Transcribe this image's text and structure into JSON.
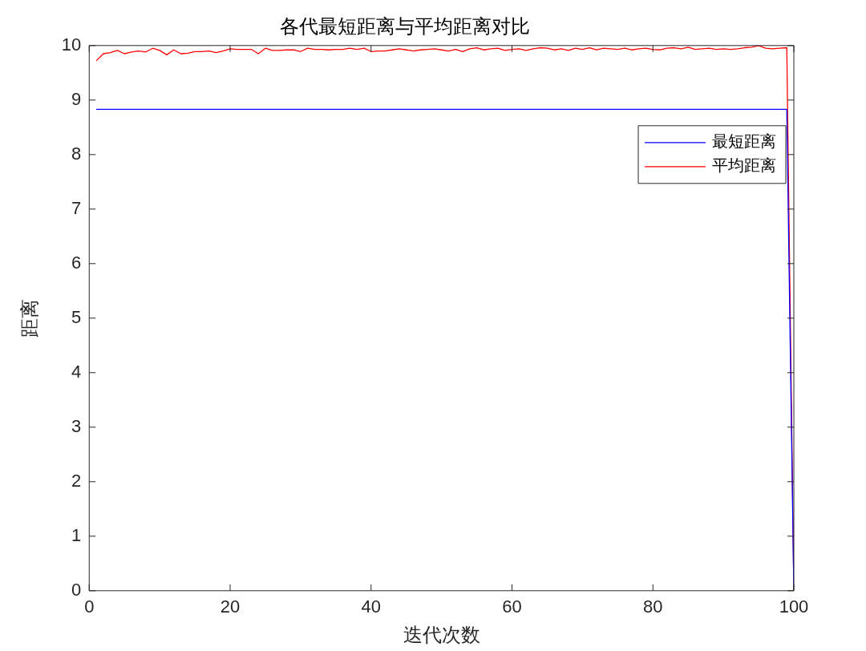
{
  "chart_data": {
    "type": "line",
    "title": "各代最短距离与平均距离对比",
    "xlabel": "迭代次数",
    "ylabel": "距离",
    "x": [
      1,
      2,
      3,
      4,
      5,
      6,
      7,
      8,
      9,
      10,
      11,
      12,
      13,
      14,
      15,
      16,
      17,
      18,
      19,
      20,
      21,
      22,
      23,
      24,
      25,
      26,
      27,
      28,
      29,
      30,
      31,
      32,
      33,
      34,
      35,
      36,
      37,
      38,
      39,
      40,
      41,
      42,
      43,
      44,
      45,
      46,
      47,
      48,
      49,
      50,
      51,
      52,
      53,
      54,
      55,
      56,
      57,
      58,
      59,
      60,
      61,
      62,
      63,
      64,
      65,
      66,
      67,
      68,
      69,
      70,
      71,
      72,
      73,
      74,
      75,
      76,
      77,
      78,
      79,
      80,
      81,
      82,
      83,
      84,
      85,
      86,
      87,
      88,
      89,
      90,
      91,
      92,
      93,
      94,
      95,
      96,
      97,
      98,
      99,
      100
    ],
    "series": [
      {
        "name": "最短距离",
        "color": "#0000ff",
        "values": [
          8.83,
          8.83,
          8.83,
          8.83,
          8.83,
          8.83,
          8.83,
          8.83,
          8.83,
          8.83,
          8.83,
          8.83,
          8.83,
          8.83,
          8.83,
          8.83,
          8.83,
          8.83,
          8.83,
          8.83,
          8.83,
          8.83,
          8.83,
          8.83,
          8.83,
          8.83,
          8.83,
          8.83,
          8.83,
          8.83,
          8.83,
          8.83,
          8.83,
          8.83,
          8.83,
          8.83,
          8.83,
          8.83,
          8.83,
          8.83,
          8.83,
          8.83,
          8.83,
          8.83,
          8.83,
          8.83,
          8.83,
          8.83,
          8.83,
          8.83,
          8.83,
          8.83,
          8.83,
          8.83,
          8.83,
          8.83,
          8.83,
          8.83,
          8.83,
          8.83,
          8.83,
          8.83,
          8.83,
          8.83,
          8.83,
          8.83,
          8.83,
          8.83,
          8.83,
          8.83,
          8.83,
          8.83,
          8.83,
          8.83,
          8.83,
          8.83,
          8.83,
          8.83,
          8.83,
          8.83,
          8.83,
          8.83,
          8.83,
          8.83,
          8.83,
          8.83,
          8.83,
          8.83,
          8.83,
          8.83,
          8.83,
          8.83,
          8.83,
          8.83,
          8.83,
          8.83,
          8.83,
          8.83,
          8.83,
          0
        ]
      },
      {
        "name": "平均距离",
        "color": "#ff0000",
        "values": [
          9.72,
          9.85,
          9.87,
          9.91,
          9.85,
          9.88,
          9.9,
          9.88,
          9.95,
          9.91,
          9.83,
          9.92,
          9.85,
          9.86,
          9.89,
          9.89,
          9.9,
          9.87,
          9.9,
          9.94,
          9.93,
          9.93,
          9.93,
          9.85,
          9.95,
          9.91,
          9.91,
          9.92,
          9.92,
          9.89,
          9.95,
          9.93,
          9.93,
          9.92,
          9.93,
          9.93,
          9.95,
          9.93,
          9.95,
          9.89,
          9.9,
          9.9,
          9.92,
          9.94,
          9.92,
          9.9,
          9.92,
          9.93,
          9.94,
          9.92,
          9.9,
          9.93,
          9.89,
          9.94,
          9.96,
          9.92,
          9.94,
          9.95,
          9.91,
          9.93,
          9.94,
          9.91,
          9.94,
          9.96,
          9.95,
          9.92,
          9.94,
          9.91,
          9.95,
          9.93,
          9.96,
          9.92,
          9.95,
          9.94,
          9.93,
          9.95,
          9.92,
          9.94,
          9.95,
          9.93,
          9.92,
          9.95,
          9.96,
          9.94,
          9.97,
          9.93,
          9.94,
          9.95,
          9.93,
          9.94,
          9.93,
          9.94,
          9.96,
          9.97,
          10,
          9.95,
          9.94,
          9.95,
          9.96,
          0
        ]
      }
    ],
    "xlim": [
      0,
      100
    ],
    "xticks": [
      0,
      20,
      40,
      60,
      80,
      100
    ],
    "ylim": [
      0,
      10
    ],
    "yticks": [
      0,
      1,
      2,
      3,
      4,
      5,
      6,
      7,
      8,
      9,
      10
    ],
    "grid": false,
    "legend": "top right",
    "marker": "none",
    "line_style": "solid"
  }
}
